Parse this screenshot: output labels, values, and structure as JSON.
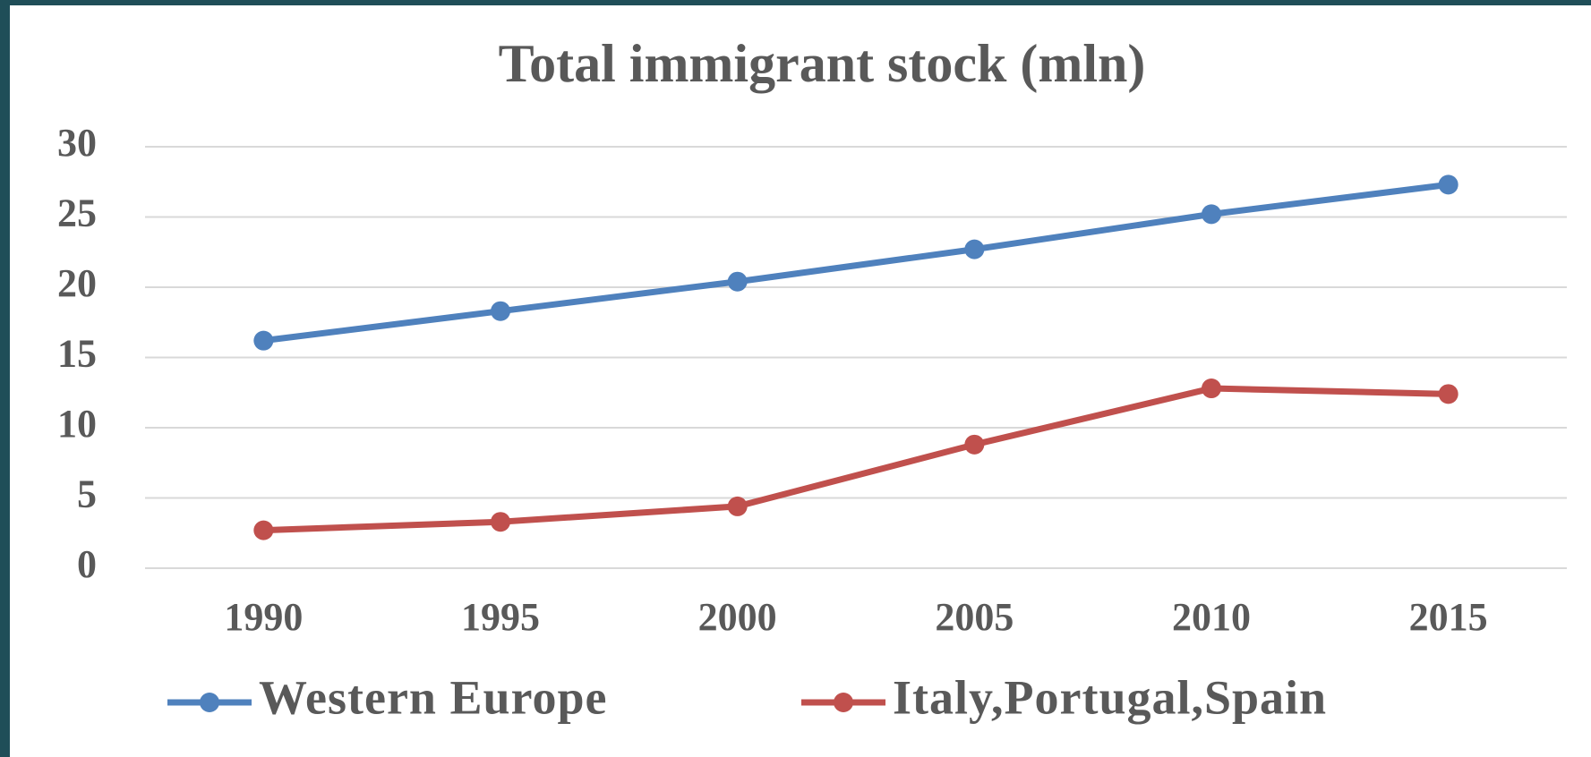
{
  "chart_data": {
    "type": "line",
    "title": "Total immigrant stock (mln)",
    "categories": [
      "1990",
      "1995",
      "2000",
      "2005",
      "2010",
      "2015"
    ],
    "series": [
      {
        "name": "Western Europe",
        "color": "#4f81bd",
        "values": [
          16.2,
          18.3,
          20.4,
          22.7,
          25.2,
          27.3
        ]
      },
      {
        "name": "Italy,Portugal,Spain",
        "color": "#c0504d",
        "values": [
          2.7,
          3.3,
          4.4,
          8.8,
          12.8,
          12.4
        ]
      }
    ],
    "ylim": [
      0,
      30
    ],
    "yticks": [
      0,
      5,
      10,
      15,
      20,
      25,
      30
    ],
    "grid": true,
    "legend": "bottom"
  }
}
